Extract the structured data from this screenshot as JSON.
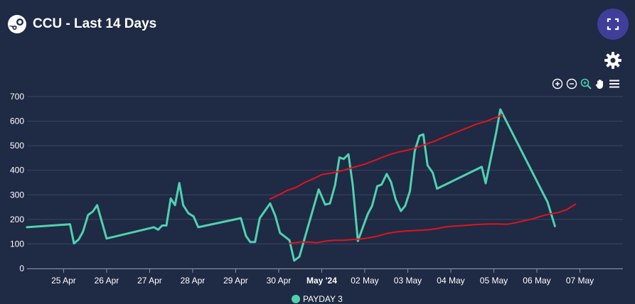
{
  "header": {
    "title": "CCU - Last 14 Days"
  },
  "icons": {
    "logo": "steam-icon",
    "expand": "fullscreen-icon",
    "settings": "gear-icon",
    "toolbar": [
      "zoom-in-icon",
      "zoom-out-icon",
      "zoom-select-icon",
      "pan-hand-icon",
      "menu-icon"
    ]
  },
  "colors": {
    "background": "#1f2a44",
    "ccu_line": "#4fd1b0",
    "trend_line": "#e0141e",
    "grid": "#3a4560",
    "expand_button": "#3f3f9a"
  },
  "legend": {
    "label": "PAYDAY 3"
  },
  "chart_data": {
    "type": "line",
    "title": "CCU - Last 14 Days",
    "xlabel": "",
    "ylabel": "",
    "ylim": [
      0,
      700
    ],
    "yticks": [
      0,
      100,
      200,
      300,
      400,
      500,
      600,
      700
    ],
    "xlim": [
      24.55,
      38.4
    ],
    "xticks": [
      {
        "x": 25.4,
        "label": "25 Apr",
        "bold": false
      },
      {
        "x": 26.4,
        "label": "26 Apr",
        "bold": false
      },
      {
        "x": 27.4,
        "label": "27 Apr",
        "bold": false
      },
      {
        "x": 28.4,
        "label": "28 Apr",
        "bold": false
      },
      {
        "x": 29.4,
        "label": "29 Apr",
        "bold": false
      },
      {
        "x": 30.4,
        "label": "30 Apr",
        "bold": false
      },
      {
        "x": 31.4,
        "label": "May '24",
        "bold": true
      },
      {
        "x": 32.4,
        "label": "02 May",
        "bold": false
      },
      {
        "x": 33.4,
        "label": "03 May",
        "bold": false
      },
      {
        "x": 34.4,
        "label": "04 May",
        "bold": false
      },
      {
        "x": 35.4,
        "label": "05 May",
        "bold": false
      },
      {
        "x": 36.4,
        "label": "06 May",
        "bold": false
      },
      {
        "x": 37.4,
        "label": "07 May",
        "bold": false
      }
    ],
    "grid": true,
    "legend_position": "bottom-center",
    "series": [
      {
        "name": "PAYDAY 3",
        "color": "#4fd1b0",
        "points": [
          [
            24.55,
            168
          ],
          [
            25.55,
            180
          ],
          [
            25.64,
            102
          ],
          [
            25.75,
            118
          ],
          [
            25.85,
            150
          ],
          [
            25.97,
            218
          ],
          [
            26.08,
            232
          ],
          [
            26.18,
            258
          ],
          [
            26.4,
            122
          ],
          [
            27.5,
            168
          ],
          [
            27.6,
            158
          ],
          [
            27.69,
            175
          ],
          [
            27.79,
            175
          ],
          [
            27.89,
            285
          ],
          [
            27.99,
            258
          ],
          [
            28.09,
            348
          ],
          [
            28.18,
            258
          ],
          [
            28.3,
            225
          ],
          [
            28.42,
            212
          ],
          [
            28.53,
            168
          ],
          [
            29.52,
            205
          ],
          [
            29.64,
            132
          ],
          [
            29.74,
            108
          ],
          [
            29.85,
            108
          ],
          [
            29.96,
            205
          ],
          [
            30.08,
            235
          ],
          [
            30.2,
            265
          ],
          [
            30.32,
            215
          ],
          [
            30.43,
            145
          ],
          [
            30.65,
            115
          ],
          [
            30.76,
            32
          ],
          [
            30.88,
            48
          ],
          [
            31.33,
            322
          ],
          [
            31.48,
            260
          ],
          [
            31.59,
            265
          ],
          [
            31.71,
            340
          ],
          [
            31.81,
            452
          ],
          [
            31.91,
            446
          ],
          [
            32.02,
            465
          ],
          [
            32.12,
            342
          ],
          [
            32.24,
            112
          ],
          [
            32.35,
            165
          ],
          [
            32.47,
            222
          ],
          [
            32.57,
            255
          ],
          [
            32.69,
            335
          ],
          [
            32.79,
            342
          ],
          [
            32.91,
            385
          ],
          [
            33.01,
            352
          ],
          [
            33.12,
            280
          ],
          [
            33.24,
            234
          ],
          [
            33.34,
            255
          ],
          [
            33.45,
            315
          ],
          [
            33.56,
            478
          ],
          [
            33.67,
            540
          ],
          [
            33.76,
            546
          ],
          [
            33.86,
            420
          ],
          [
            33.98,
            390
          ],
          [
            34.08,
            325
          ],
          [
            35.12,
            414
          ],
          [
            35.21,
            347
          ],
          [
            35.46,
            558
          ],
          [
            35.55,
            648
          ],
          [
            36.65,
            270
          ],
          [
            36.82,
            172
          ]
        ]
      },
      {
        "name": "",
        "color": "#e0141e",
        "points": [
          [
            30.2,
            283
          ],
          [
            30.4,
            300
          ],
          [
            30.6,
            318
          ],
          [
            30.8,
            330
          ],
          [
            31.0,
            350
          ],
          [
            31.2,
            365
          ],
          [
            31.4,
            382
          ],
          [
            31.6,
            388
          ],
          [
            31.8,
            395
          ],
          [
            32.0,
            405
          ],
          [
            32.2,
            415
          ],
          [
            32.4,
            425
          ],
          [
            32.6,
            438
          ],
          [
            32.8,
            452
          ],
          [
            33.0,
            465
          ],
          [
            33.2,
            475
          ],
          [
            33.4,
            482
          ],
          [
            33.6,
            492
          ],
          [
            33.8,
            505
          ],
          [
            34.0,
            517
          ],
          [
            34.2,
            532
          ],
          [
            34.4,
            546
          ],
          [
            34.6,
            560
          ],
          [
            34.8,
            574
          ],
          [
            35.0,
            588
          ],
          [
            35.2,
            598
          ],
          [
            35.4,
            612
          ],
          [
            35.6,
            625
          ]
        ]
      },
      {
        "name": "",
        "color": "#e0141e",
        "points": [
          [
            30.65,
            102
          ],
          [
            30.9,
            108
          ],
          [
            31.1,
            108
          ],
          [
            31.3,
            105
          ],
          [
            31.5,
            112
          ],
          [
            31.7,
            115
          ],
          [
            31.9,
            115
          ],
          [
            32.1,
            118
          ],
          [
            32.3,
            120
          ],
          [
            32.5,
            125
          ],
          [
            32.7,
            132
          ],
          [
            32.9,
            142
          ],
          [
            33.1,
            148
          ],
          [
            33.3,
            152
          ],
          [
            33.5,
            154
          ],
          [
            33.7,
            156
          ],
          [
            33.9,
            158
          ],
          [
            34.1,
            163
          ],
          [
            34.3,
            170
          ],
          [
            34.5,
            173
          ],
          [
            34.7,
            175
          ],
          [
            34.9,
            178
          ],
          [
            35.1,
            180
          ],
          [
            35.3,
            181
          ],
          [
            35.5,
            181
          ],
          [
            35.7,
            180
          ],
          [
            35.9,
            186
          ],
          [
            36.1,
            194
          ],
          [
            36.3,
            202
          ],
          [
            36.5,
            213
          ],
          [
            36.7,
            222
          ],
          [
            36.9,
            228
          ],
          [
            37.1,
            240
          ],
          [
            37.3,
            262
          ]
        ]
      }
    ]
  }
}
